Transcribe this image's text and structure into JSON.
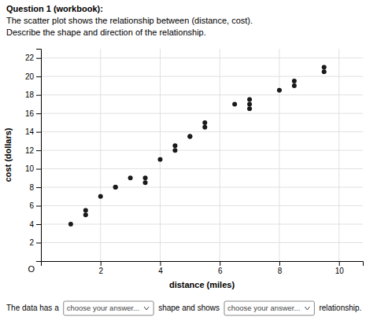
{
  "chart_data": {
    "type": "scatter",
    "title": "Question 1 (workbook):",
    "subtitle": "The scatter plot shows the relationship between (distance, cost).",
    "annotations": [
      "Describe the shape and direction of the relationship.",
      "O",
      "The data has a",
      "choose your answer...",
      "shape and shows",
      "choose your answer...",
      "relationship."
    ],
    "xlabel": "distance (miles)",
    "ylabel": "cost (dollars)",
    "x": [
      1.0,
      1.5,
      1.5,
      2.0,
      2.5,
      2.5,
      3.0,
      3.5,
      3.5,
      4.0,
      4.5,
      4.5,
      5.0,
      5.0,
      5.5,
      5.5,
      6.5,
      7.0,
      7.0,
      7.0,
      8.0,
      8.5,
      8.5,
      9.5,
      9.5
    ],
    "values": [
      4.0,
      5.0,
      5.5,
      7.0,
      8.0,
      8.0,
      9.0,
      9.0,
      8.5,
      11.0,
      12.0,
      12.5,
      13.5,
      13.5,
      14.5,
      15.0,
      17.0,
      17.5,
      17.0,
      16.5,
      18.5,
      19.5,
      19.0,
      20.5,
      21.0
    ],
    "color": "#1a1a1a",
    "xlim": [
      0,
      10.8
    ],
    "ylim": [
      0,
      23
    ],
    "xticks": [
      2,
      4,
      6,
      8,
      10
    ],
    "yticks": [
      2,
      4,
      6,
      8,
      10,
      12,
      14,
      16,
      18,
      20,
      22
    ],
    "grid": true
  }
}
